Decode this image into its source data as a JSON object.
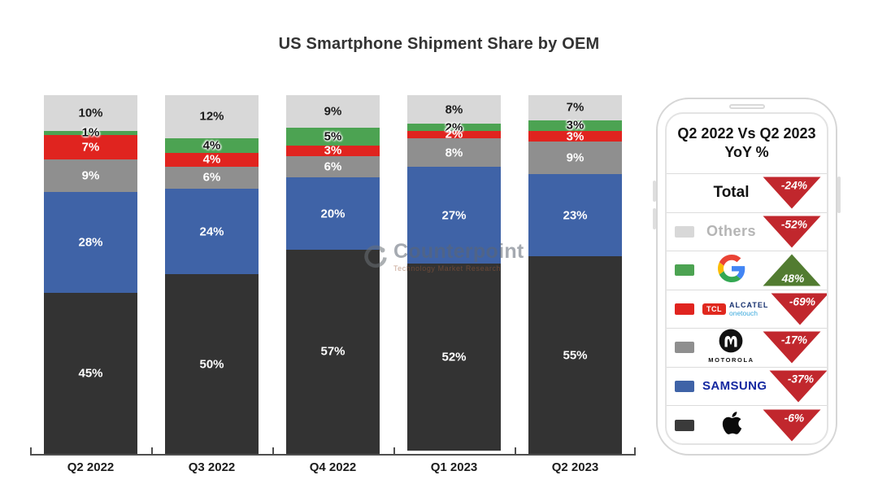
{
  "title": "US Smartphone Shipment Share by OEM",
  "watermark": {
    "name": "Counterpoint",
    "tagline": "Technology Market Research"
  },
  "chart_data": {
    "type": "bar",
    "stacked": true,
    "title": "US Smartphone Shipment Share by OEM",
    "categories": [
      "Q2 2022",
      "Q3 2022",
      "Q4 2022",
      "Q1 2023",
      "Q2 2023"
    ],
    "series": [
      {
        "name": "Apple",
        "color": "#333333",
        "label_color": "#ffffff",
        "label_halo": false,
        "values": [
          45,
          50,
          57,
          52,
          55
        ]
      },
      {
        "name": "Samsung",
        "color": "#3f63a7",
        "label_color": "#ffffff",
        "label_halo": false,
        "values": [
          28,
          24,
          20,
          27,
          23
        ]
      },
      {
        "name": "Motorola",
        "color": "#8f8f8f",
        "label_color": "#ffffff",
        "label_halo": false,
        "values": [
          9,
          6,
          6,
          8,
          9
        ]
      },
      {
        "name": "TCL",
        "color": "#e0241f",
        "label_color": "#ffffff",
        "label_halo": false,
        "values": [
          7,
          4,
          3,
          2,
          3
        ]
      },
      {
        "name": "Google",
        "color": "#4ca352",
        "label_color": "#141414",
        "label_halo": true,
        "values": [
          1,
          4,
          5,
          2,
          3
        ]
      },
      {
        "name": "Others",
        "color": "#d8d8d8",
        "label_color": "#1c1c1c",
        "label_halo": false,
        "values": [
          10,
          12,
          9,
          8,
          7
        ]
      }
    ],
    "value_suffix": "%",
    "ylim": [
      0,
      100
    ],
    "grid": false,
    "legend_position": "right-panel"
  },
  "legend_panel": {
    "heading_line1": "Q2 2022 Vs Q2 2023",
    "heading_line2": "YoY %",
    "triangle_colors": {
      "down": "#c1272d",
      "up": "#527c31"
    },
    "rows": [
      {
        "label": "Total",
        "swatch": null,
        "logo": "text-total",
        "logo_text": "Total",
        "change": "-24%",
        "direction": "down"
      },
      {
        "label": "Others",
        "swatch": "#d8d8d8",
        "logo": "text-others",
        "logo_text": "Others",
        "change": "-52%",
        "direction": "down"
      },
      {
        "label": "Google",
        "swatch": "#4ca352",
        "logo": "google-logo",
        "logo_text": "",
        "change": "48%",
        "direction": "up"
      },
      {
        "label": "TCL Alcatel onetouch",
        "swatch": "#e0241f",
        "logo": "tcl-alcatel-logo",
        "logo_text_tcl": "TCL",
        "logo_text_alcatel": "ALCATEL",
        "logo_text_onetouch": "onetouch",
        "change": "-69%",
        "direction": "down"
      },
      {
        "label": "Motorola",
        "swatch": "#8f8f8f",
        "logo": "motorola-logo",
        "logo_text": "MOTOROLA",
        "change": "-17%",
        "direction": "down"
      },
      {
        "label": "Samsung",
        "swatch": "#3f63a7",
        "logo": "samsung-wordmark",
        "logo_text": "SAMSUNG",
        "change": "-37%",
        "direction": "down"
      },
      {
        "label": "Apple",
        "swatch": "#3a3a3a",
        "logo": "apple-logo",
        "logo_text": "",
        "change": "-6%",
        "direction": "down"
      }
    ]
  }
}
